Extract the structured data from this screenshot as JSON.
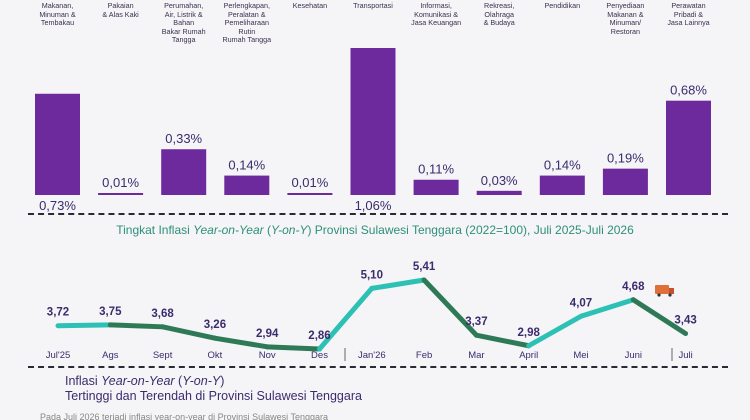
{
  "chart_data": [
    {
      "type": "bar",
      "categories": [
        "Makanan, Minuman & Tembakau",
        "Pakaian & Alas Kaki",
        "Perumahan, Air, Listrik & Bahan Bakar Rumah Tangga",
        "Perlengkapan, Peralatan & Pemeliharaan Rutin Rumah Tangga",
        "Kesehatan",
        "Transportasi",
        "Informasi, Komunikasi & Jasa Keuangan",
        "Rekreasi, Olahraga & Budaya",
        "Pendidikan",
        "Penyediaan Makanan & Minuman/ Restoran",
        "Perawatan Pribadi & Jasa Lainnya"
      ],
      "category_lines": [
        [
          "Makanan,",
          "Minuman &",
          "Tembakau"
        ],
        [
          "Pakaian",
          "& Alas Kaki"
        ],
        [
          "Perumahan,",
          "Air, Listrik &",
          "Bahan",
          "Bakar Rumah",
          "Tangga"
        ],
        [
          "Perlengkapan,",
          "Peralatan &",
          "Pemeliharaan",
          "Rutin",
          "Rumah Tangga"
        ],
        [
          "Kesehatan"
        ],
        [
          "Transportasi"
        ],
        [
          "Informasi,",
          "Komunikasi &",
          "Jasa Keuangan"
        ],
        [
          "Rekreasi,",
          "Olahraga",
          "& Budaya"
        ],
        [
          "Pendidikan"
        ],
        [
          "Penyediaan",
          "Makanan &",
          "Minuman/",
          "Restoran"
        ],
        [
          "Perawatan",
          "Pribadi &",
          "Jasa Lainnya"
        ]
      ],
      "values": [
        0.73,
        0.01,
        0.33,
        0.14,
        0.01,
        1.06,
        0.11,
        0.03,
        0.14,
        0.19,
        0.68
      ],
      "labels": [
        "0,73%",
        "0,01%",
        "0,33%",
        "0,14%",
        "0,01%",
        "1,06%",
        "0,11%",
        "0,03%",
        "0,14%",
        "0,19%",
        "0,68%"
      ],
      "label_inside": [
        true,
        false,
        false,
        false,
        false,
        true,
        false,
        false,
        false,
        false,
        false
      ],
      "color": "#6c2a9c",
      "ylim": [
        0,
        1.06
      ]
    },
    {
      "type": "line",
      "categories": [
        "Jul'25",
        "Ags",
        "Sept",
        "Okt",
        "Nov",
        "Des",
        "Jan'26",
        "Feb",
        "Mar",
        "April",
        "Mei",
        "Juni",
        "Juli"
      ],
      "values": [
        3.72,
        3.75,
        3.68,
        3.26,
        2.94,
        2.86,
        5.1,
        5.41,
        3.37,
        2.98,
        4.07,
        4.68,
        3.43
      ],
      "labels": [
        "3,72",
        "3,75",
        "3,68",
        "3,26",
        "2,94",
        "2,86",
        "5,10",
        "5,41",
        "3,37",
        "2,98",
        "4,07",
        "4,68",
        "3,43"
      ],
      "colors": {
        "rise": "#2cc1b4",
        "fall": "#2e7a57"
      },
      "ylim": [
        2.86,
        5.41
      ]
    }
  ],
  "line_title": {
    "prefix": "Tingkat Inflasi ",
    "italic1": "Year-on-Year",
    "mid": " (",
    "italic2": "Y-on-Y",
    "suffix": ") Provinsi Sulawesi Tenggara (2022=100), Juli 2025-Juli 2026"
  },
  "bottom_title": {
    "prefix": "Inflasi ",
    "italic1": "Year-on-Year",
    "mid": " (",
    "italic2": "Y-on-Y",
    "suffix": ")",
    "line2": "Tertinggi dan Terendah di Provinsi Sulawesi Tenggara"
  },
  "footnote": "Pada Juli 2026 terjadi inflasi year-on-year di Provinsi Sulawesi Tenggara"
}
